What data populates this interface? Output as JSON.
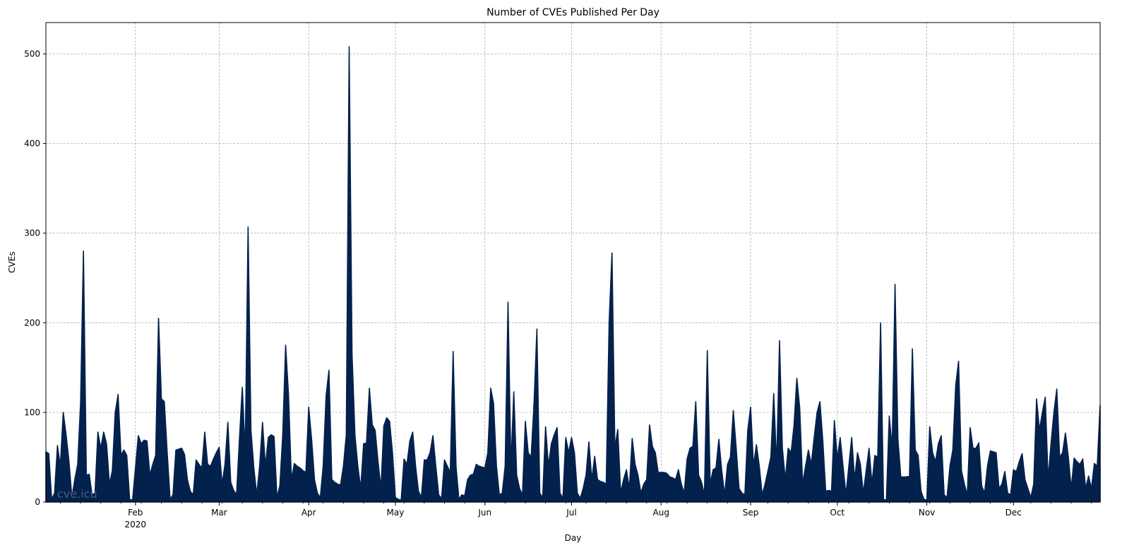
{
  "chart_data": {
    "type": "area",
    "title": "Number of CVEs Published Per Day",
    "xlabel": "Day",
    "ylabel": "CVEs",
    "watermark": "cve.icu",
    "year_label": "2020",
    "x_range": [
      "2020-01-01",
      "2020-12-31"
    ],
    "ylim": [
      0,
      535
    ],
    "y_ticks": [
      0,
      100,
      200,
      300,
      400,
      500
    ],
    "month_ticks": [
      {
        "date": "2020-02-01",
        "label": "Feb"
      },
      {
        "date": "2020-03-01",
        "label": "Mar"
      },
      {
        "date": "2020-04-01",
        "label": "Apr"
      },
      {
        "date": "2020-05-01",
        "label": "May"
      },
      {
        "date": "2020-06-01",
        "label": "Jun"
      },
      {
        "date": "2020-07-01",
        "label": "Jul"
      },
      {
        "date": "2020-08-01",
        "label": "Aug"
      },
      {
        "date": "2020-09-01",
        "label": "Sep"
      },
      {
        "date": "2020-10-01",
        "label": "Oct"
      },
      {
        "date": "2020-11-01",
        "label": "Nov"
      },
      {
        "date": "2020-12-01",
        "label": "Dec"
      }
    ],
    "grid": true,
    "color": "#03214d",
    "points": [
      [
        "2020-01-01",
        56
      ],
      [
        "2020-01-02",
        54
      ],
      [
        "2020-01-03",
        3
      ],
      [
        "2020-01-04",
        10
      ],
      [
        "2020-01-05",
        63
      ],
      [
        "2020-01-06",
        40
      ],
      [
        "2020-01-07",
        100
      ],
      [
        "2020-01-08",
        75
      ],
      [
        "2020-01-09",
        45
      ],
      [
        "2020-01-10",
        5
      ],
      [
        "2020-01-11",
        25
      ],
      [
        "2020-01-12",
        42
      ],
      [
        "2020-01-13",
        110
      ],
      [
        "2020-01-14",
        280
      ],
      [
        "2020-01-15",
        30
      ],
      [
        "2020-01-16",
        31
      ],
      [
        "2020-01-17",
        8
      ],
      [
        "2020-01-18",
        10
      ],
      [
        "2020-01-19",
        78
      ],
      [
        "2020-01-20",
        60
      ],
      [
        "2020-01-21",
        78
      ],
      [
        "2020-01-22",
        65
      ],
      [
        "2020-01-23",
        20
      ],
      [
        "2020-01-24",
        35
      ],
      [
        "2020-01-25",
        100
      ],
      [
        "2020-01-26",
        120
      ],
      [
        "2020-01-27",
        52
      ],
      [
        "2020-01-28",
        58
      ],
      [
        "2020-01-29",
        52
      ],
      [
        "2020-01-30",
        3
      ],
      [
        "2020-01-31",
        2
      ],
      [
        "2020-02-01",
        38
      ],
      [
        "2020-02-02",
        74
      ],
      [
        "2020-02-03",
        65
      ],
      [
        "2020-02-04",
        69
      ],
      [
        "2020-02-05",
        68
      ],
      [
        "2020-02-06",
        30
      ],
      [
        "2020-02-07",
        42
      ],
      [
        "2020-02-08",
        52
      ],
      [
        "2020-02-09",
        205
      ],
      [
        "2020-02-10",
        115
      ],
      [
        "2020-02-11",
        112
      ],
      [
        "2020-02-12",
        55
      ],
      [
        "2020-02-13",
        3
      ],
      [
        "2020-02-14",
        8
      ],
      [
        "2020-02-15",
        58
      ],
      [
        "2020-02-16",
        59
      ],
      [
        "2020-02-17",
        60
      ],
      [
        "2020-02-18",
        53
      ],
      [
        "2020-02-19",
        25
      ],
      [
        "2020-02-20",
        12
      ],
      [
        "2020-02-21",
        8
      ],
      [
        "2020-02-22",
        47
      ],
      [
        "2020-02-23",
        42
      ],
      [
        "2020-02-24",
        38
      ],
      [
        "2020-02-25",
        78
      ],
      [
        "2020-02-26",
        42
      ],
      [
        "2020-02-27",
        40
      ],
      [
        "2020-02-28",
        48
      ],
      [
        "2020-02-29",
        55
      ],
      [
        "2020-03-01",
        61
      ],
      [
        "2020-03-02",
        20
      ],
      [
        "2020-03-03",
        42
      ],
      [
        "2020-03-04",
        89
      ],
      [
        "2020-03-05",
        22
      ],
      [
        "2020-03-06",
        13
      ],
      [
        "2020-03-07",
        8
      ],
      [
        "2020-03-08",
        70
      ],
      [
        "2020-03-09",
        128
      ],
      [
        "2020-03-10",
        55
      ],
      [
        "2020-03-11",
        307
      ],
      [
        "2020-03-12",
        80
      ],
      [
        "2020-03-13",
        38
      ],
      [
        "2020-03-14",
        8
      ],
      [
        "2020-03-15",
        40
      ],
      [
        "2020-03-16",
        89
      ],
      [
        "2020-03-17",
        40
      ],
      [
        "2020-03-18",
        72
      ],
      [
        "2020-03-19",
        75
      ],
      [
        "2020-03-20",
        73
      ],
      [
        "2020-03-21",
        5
      ],
      [
        "2020-03-22",
        18
      ],
      [
        "2020-03-23",
        75
      ],
      [
        "2020-03-24",
        175
      ],
      [
        "2020-03-25",
        120
      ],
      [
        "2020-03-26",
        25
      ],
      [
        "2020-03-27",
        43
      ],
      [
        "2020-03-28",
        40
      ],
      [
        "2020-03-29",
        38
      ],
      [
        "2020-03-30",
        35
      ],
      [
        "2020-03-31",
        33
      ],
      [
        "2020-04-01",
        106
      ],
      [
        "2020-04-02",
        70
      ],
      [
        "2020-04-03",
        25
      ],
      [
        "2020-04-04",
        10
      ],
      [
        "2020-04-05",
        5
      ],
      [
        "2020-04-06",
        40
      ],
      [
        "2020-04-07",
        118
      ],
      [
        "2020-04-08",
        147
      ],
      [
        "2020-04-09",
        25
      ],
      [
        "2020-04-10",
        22
      ],
      [
        "2020-04-11",
        20
      ],
      [
        "2020-04-12",
        19
      ],
      [
        "2020-04-13",
        40
      ],
      [
        "2020-04-14",
        75
      ],
      [
        "2020-04-15",
        508
      ],
      [
        "2020-04-16",
        165
      ],
      [
        "2020-04-17",
        75
      ],
      [
        "2020-04-18",
        40
      ],
      [
        "2020-04-19",
        15
      ],
      [
        "2020-04-20",
        65
      ],
      [
        "2020-04-21",
        66
      ],
      [
        "2020-04-22",
        127
      ],
      [
        "2020-04-23",
        86
      ],
      [
        "2020-04-24",
        80
      ],
      [
        "2020-04-25",
        45
      ],
      [
        "2020-04-26",
        15
      ],
      [
        "2020-04-27",
        85
      ],
      [
        "2020-04-28",
        94
      ],
      [
        "2020-04-29",
        90
      ],
      [
        "2020-04-30",
        55
      ],
      [
        "2020-05-01",
        5
      ],
      [
        "2020-05-02",
        3
      ],
      [
        "2020-05-03",
        2
      ],
      [
        "2020-05-04",
        48
      ],
      [
        "2020-05-05",
        42
      ],
      [
        "2020-05-06",
        68
      ],
      [
        "2020-05-07",
        78
      ],
      [
        "2020-05-08",
        40
      ],
      [
        "2020-05-09",
        12
      ],
      [
        "2020-05-10",
        5
      ],
      [
        "2020-05-11",
        47
      ],
      [
        "2020-05-12",
        47
      ],
      [
        "2020-05-13",
        55
      ],
      [
        "2020-05-14",
        74
      ],
      [
        "2020-05-15",
        40
      ],
      [
        "2020-05-16",
        8
      ],
      [
        "2020-05-17",
        4
      ],
      [
        "2020-05-18",
        47
      ],
      [
        "2020-05-19",
        40
      ],
      [
        "2020-05-20",
        33
      ],
      [
        "2020-05-21",
        168
      ],
      [
        "2020-05-22",
        40
      ],
      [
        "2020-05-23",
        3
      ],
      [
        "2020-05-24",
        8
      ],
      [
        "2020-05-25",
        7
      ],
      [
        "2020-05-26",
        25
      ],
      [
        "2020-05-27",
        30
      ],
      [
        "2020-05-28",
        31
      ],
      [
        "2020-05-29",
        42
      ],
      [
        "2020-05-30",
        40
      ],
      [
        "2020-05-31",
        39
      ],
      [
        "2020-06-01",
        38
      ],
      [
        "2020-06-02",
        55
      ],
      [
        "2020-06-03",
        127
      ],
      [
        "2020-06-04",
        110
      ],
      [
        "2020-06-05",
        40
      ],
      [
        "2020-06-06",
        8
      ],
      [
        "2020-06-07",
        10
      ],
      [
        "2020-06-08",
        40
      ],
      [
        "2020-06-09",
        223
      ],
      [
        "2020-06-10",
        40
      ],
      [
        "2020-06-11",
        123
      ],
      [
        "2020-06-12",
        30
      ],
      [
        "2020-06-13",
        15
      ],
      [
        "2020-06-14",
        8
      ],
      [
        "2020-06-15",
        90
      ],
      [
        "2020-06-16",
        55
      ],
      [
        "2020-06-17",
        50
      ],
      [
        "2020-06-18",
        110
      ],
      [
        "2020-06-19",
        193
      ],
      [
        "2020-06-20",
        10
      ],
      [
        "2020-06-21",
        5
      ],
      [
        "2020-06-22",
        84
      ],
      [
        "2020-06-23",
        40
      ],
      [
        "2020-06-24",
        65
      ],
      [
        "2020-06-25",
        75
      ],
      [
        "2020-06-26",
        83
      ],
      [
        "2020-06-27",
        10
      ],
      [
        "2020-06-28",
        4
      ],
      [
        "2020-06-29",
        72
      ],
      [
        "2020-06-30",
        55
      ],
      [
        "2020-07-01",
        72
      ],
      [
        "2020-07-02",
        55
      ],
      [
        "2020-07-03",
        10
      ],
      [
        "2020-07-04",
        4
      ],
      [
        "2020-07-05",
        15
      ],
      [
        "2020-07-06",
        30
      ],
      [
        "2020-07-07",
        67
      ],
      [
        "2020-07-08",
        25
      ],
      [
        "2020-07-09",
        51
      ],
      [
        "2020-07-10",
        25
      ],
      [
        "2020-07-11",
        23
      ],
      [
        "2020-07-12",
        22
      ],
      [
        "2020-07-13",
        20
      ],
      [
        "2020-07-14",
        200
      ],
      [
        "2020-07-15",
        278
      ],
      [
        "2020-07-16",
        60
      ],
      [
        "2020-07-17",
        81
      ],
      [
        "2020-07-18",
        10
      ],
      [
        "2020-07-19",
        25
      ],
      [
        "2020-07-20",
        36
      ],
      [
        "2020-07-21",
        15
      ],
      [
        "2020-07-22",
        71
      ],
      [
        "2020-07-23",
        42
      ],
      [
        "2020-07-24",
        30
      ],
      [
        "2020-07-25",
        10
      ],
      [
        "2020-07-26",
        20
      ],
      [
        "2020-07-27",
        25
      ],
      [
        "2020-07-28",
        86
      ],
      [
        "2020-07-29",
        62
      ],
      [
        "2020-07-30",
        55
      ],
      [
        "2020-07-31",
        33
      ],
      [
        "2020-08-01",
        33
      ],
      [
        "2020-08-02",
        33
      ],
      [
        "2020-08-03",
        32
      ],
      [
        "2020-08-04",
        28
      ],
      [
        "2020-08-05",
        27
      ],
      [
        "2020-08-06",
        25
      ],
      [
        "2020-08-07",
        36
      ],
      [
        "2020-08-08",
        20
      ],
      [
        "2020-08-09",
        10
      ],
      [
        "2020-08-10",
        48
      ],
      [
        "2020-08-11",
        60
      ],
      [
        "2020-08-12",
        62
      ],
      [
        "2020-08-13",
        112
      ],
      [
        "2020-08-14",
        30
      ],
      [
        "2020-08-15",
        22
      ],
      [
        "2020-08-16",
        8
      ],
      [
        "2020-08-17",
        169
      ],
      [
        "2020-08-18",
        20
      ],
      [
        "2020-08-19",
        36
      ],
      [
        "2020-08-20",
        38
      ],
      [
        "2020-08-21",
        70
      ],
      [
        "2020-08-22",
        35
      ],
      [
        "2020-08-23",
        8
      ],
      [
        "2020-08-24",
        42
      ],
      [
        "2020-08-25",
        50
      ],
      [
        "2020-08-26",
        102
      ],
      [
        "2020-08-27",
        60
      ],
      [
        "2020-08-28",
        15
      ],
      [
        "2020-08-29",
        10
      ],
      [
        "2020-08-30",
        8
      ],
      [
        "2020-08-31",
        80
      ],
      [
        "2020-09-01",
        106
      ],
      [
        "2020-09-02",
        40
      ],
      [
        "2020-09-03",
        64
      ],
      [
        "2020-09-04",
        40
      ],
      [
        "2020-09-05",
        8
      ],
      [
        "2020-09-06",
        20
      ],
      [
        "2020-09-07",
        35
      ],
      [
        "2020-09-08",
        50
      ],
      [
        "2020-09-09",
        121
      ],
      [
        "2020-09-10",
        40
      ],
      [
        "2020-09-11",
        180
      ],
      [
        "2020-09-12",
        60
      ],
      [
        "2020-09-13",
        25
      ],
      [
        "2020-09-14",
        60
      ],
      [
        "2020-09-15",
        55
      ],
      [
        "2020-09-16",
        85
      ],
      [
        "2020-09-17",
        138
      ],
      [
        "2020-09-18",
        105
      ],
      [
        "2020-09-19",
        20
      ],
      [
        "2020-09-20",
        40
      ],
      [
        "2020-09-21",
        58
      ],
      [
        "2020-09-22",
        42
      ],
      [
        "2020-09-23",
        72
      ],
      [
        "2020-09-24",
        100
      ],
      [
        "2020-09-25",
        112
      ],
      [
        "2020-09-26",
        68
      ],
      [
        "2020-09-27",
        12
      ],
      [
        "2020-09-28",
        13
      ],
      [
        "2020-09-29",
        12
      ],
      [
        "2020-09-30",
        91
      ],
      [
        "2020-10-01",
        48
      ],
      [
        "2020-10-02",
        72
      ],
      [
        "2020-10-03",
        40
      ],
      [
        "2020-10-04",
        8
      ],
      [
        "2020-10-05",
        40
      ],
      [
        "2020-10-06",
        72
      ],
      [
        "2020-10-07",
        25
      ],
      [
        "2020-10-08",
        55
      ],
      [
        "2020-10-09",
        42
      ],
      [
        "2020-10-10",
        10
      ],
      [
        "2020-10-11",
        35
      ],
      [
        "2020-10-12",
        60
      ],
      [
        "2020-10-13",
        20
      ],
      [
        "2020-10-14",
        52
      ],
      [
        "2020-10-15",
        50
      ],
      [
        "2020-10-16",
        200
      ],
      [
        "2020-10-17",
        3
      ],
      [
        "2020-10-18",
        2
      ],
      [
        "2020-10-19",
        96
      ],
      [
        "2020-10-20",
        60
      ],
      [
        "2020-10-21",
        243
      ],
      [
        "2020-10-22",
        70
      ],
      [
        "2020-10-23",
        28
      ],
      [
        "2020-10-24",
        28
      ],
      [
        "2020-10-25",
        28
      ],
      [
        "2020-10-26",
        29
      ],
      [
        "2020-10-27",
        171
      ],
      [
        "2020-10-28",
        58
      ],
      [
        "2020-10-29",
        52
      ],
      [
        "2020-10-30",
        12
      ],
      [
        "2020-10-31",
        3
      ],
      [
        "2020-11-01",
        2
      ],
      [
        "2020-11-02",
        84
      ],
      [
        "2020-11-03",
        55
      ],
      [
        "2020-11-04",
        45
      ],
      [
        "2020-11-05",
        65
      ],
      [
        "2020-11-06",
        74
      ],
      [
        "2020-11-07",
        8
      ],
      [
        "2020-11-08",
        5
      ],
      [
        "2020-11-09",
        40
      ],
      [
        "2020-11-10",
        58
      ],
      [
        "2020-11-11",
        130
      ],
      [
        "2020-11-12",
        157
      ],
      [
        "2020-11-13",
        35
      ],
      [
        "2020-11-14",
        20
      ],
      [
        "2020-11-15",
        8
      ],
      [
        "2020-11-16",
        83
      ],
      [
        "2020-11-17",
        60
      ],
      [
        "2020-11-18",
        60
      ],
      [
        "2020-11-19",
        66
      ],
      [
        "2020-11-20",
        18
      ],
      [
        "2020-11-21",
        10
      ],
      [
        "2020-11-22",
        40
      ],
      [
        "2020-11-23",
        57
      ],
      [
        "2020-11-24",
        56
      ],
      [
        "2020-11-25",
        55
      ],
      [
        "2020-11-26",
        15
      ],
      [
        "2020-11-27",
        20
      ],
      [
        "2020-11-28",
        34
      ],
      [
        "2020-11-29",
        10
      ],
      [
        "2020-11-30",
        8
      ],
      [
        "2020-12-01",
        36
      ],
      [
        "2020-12-02",
        34
      ],
      [
        "2020-12-03",
        45
      ],
      [
        "2020-12-04",
        54
      ],
      [
        "2020-12-05",
        25
      ],
      [
        "2020-12-06",
        15
      ],
      [
        "2020-12-07",
        5
      ],
      [
        "2020-12-08",
        20
      ],
      [
        "2020-12-09",
        115
      ],
      [
        "2020-12-10",
        80
      ],
      [
        "2020-12-11",
        100
      ],
      [
        "2020-12-12",
        117
      ],
      [
        "2020-12-13",
        25
      ],
      [
        "2020-12-14",
        65
      ],
      [
        "2020-12-15",
        100
      ],
      [
        "2020-12-16",
        126
      ],
      [
        "2020-12-17",
        50
      ],
      [
        "2020-12-18",
        55
      ],
      [
        "2020-12-19",
        77
      ],
      [
        "2020-12-20",
        50
      ],
      [
        "2020-12-21",
        15
      ],
      [
        "2020-12-22",
        49
      ],
      [
        "2020-12-23",
        45
      ],
      [
        "2020-12-24",
        42
      ],
      [
        "2020-12-25",
        48
      ],
      [
        "2020-12-26",
        15
      ],
      [
        "2020-12-27",
        29
      ],
      [
        "2020-12-28",
        15
      ],
      [
        "2020-12-29",
        43
      ],
      [
        "2020-12-30",
        40
      ],
      [
        "2020-12-31",
        108
      ]
    ]
  }
}
